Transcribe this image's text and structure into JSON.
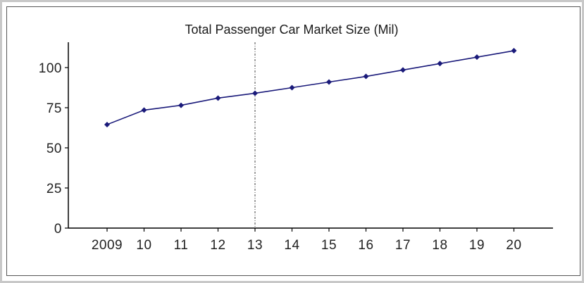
{
  "chart_data": {
    "type": "line",
    "title": "Total Passenger Car Market Size (Mil)",
    "xlabel": "",
    "ylabel": "",
    "categories": [
      "2009",
      "10",
      "11",
      "12",
      "13",
      "14",
      "15",
      "16",
      "17",
      "18",
      "19",
      "20"
    ],
    "series": [
      {
        "values": [
          64.5,
          73.5,
          76.5,
          81,
          84,
          87.5,
          91,
          94.5,
          98.5,
          102.5,
          106.5,
          110.5
        ],
        "color": "#1a1a7a",
        "marker": "diamond"
      }
    ],
    "yticks": [
      0,
      25,
      50,
      75,
      100
    ],
    "ylim": [
      0,
      116
    ],
    "divider_after_category": "13",
    "grid": false,
    "legend": "none"
  }
}
